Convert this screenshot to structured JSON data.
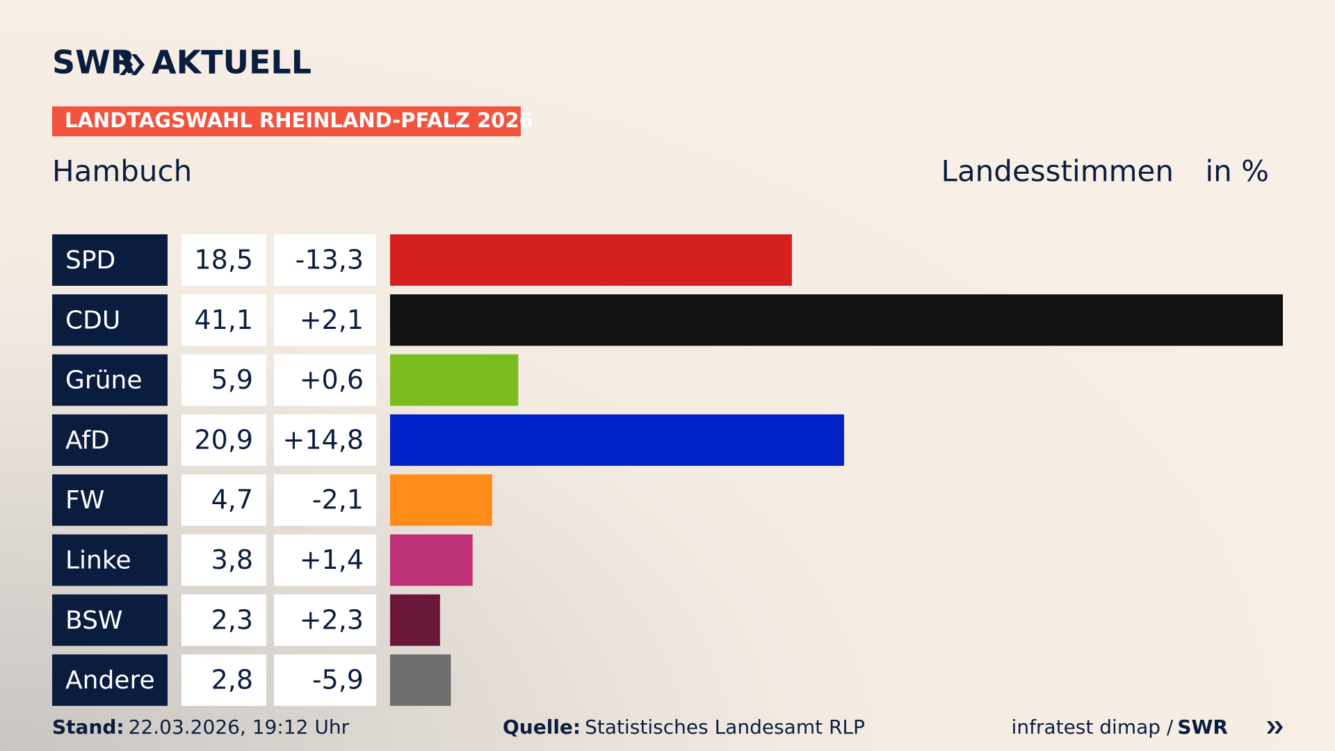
{
  "chart_data": {
    "type": "bar",
    "logo_left": "SWR",
    "logo_right": "AKTUELL",
    "title": "LANDTAGSWAHL RHEINLAND-PFALZ 2026",
    "subtitle": "Hambuch",
    "measure": "Landesstimmen",
    "unit": "in %",
    "categories": [
      "SPD",
      "CDU",
      "Grüne",
      "AfD",
      "FW",
      "Linke",
      "BSW",
      "Andere"
    ],
    "values": [
      18.5,
      41.1,
      5.9,
      20.9,
      4.7,
      3.8,
      2.3,
      2.8
    ],
    "value_labels": [
      "18,5",
      "41,1",
      "5,9",
      "20,9",
      "4,7",
      "3,8",
      "2,3",
      "2,8"
    ],
    "colors": [
      "#d62020",
      "#111111",
      "#7bbc1e",
      "#0022c8",
      "#ff8c1a",
      "#bd3075",
      "#6a173a",
      "#6f6f6f"
    ],
    "change": {
      "values": [
        -13.3,
        2.1,
        0.6,
        14.8,
        -2.1,
        1.4,
        2.3,
        -5.9
      ],
      "value_labels": [
        "-13,3",
        "+2,1",
        "+0,6",
        "+14,8",
        "-2,1",
        "+1,4",
        "+2,3",
        "-5,9"
      ]
    },
    "footer": {
      "stand_label": "Stand:",
      "stand": "22.03.2026, 19:12 Uhr",
      "source_label": "Quelle:",
      "source": "Statistisches Landesamt RLP",
      "credit": "infratest dimap /",
      "credit_logo": "SWR"
    }
  }
}
